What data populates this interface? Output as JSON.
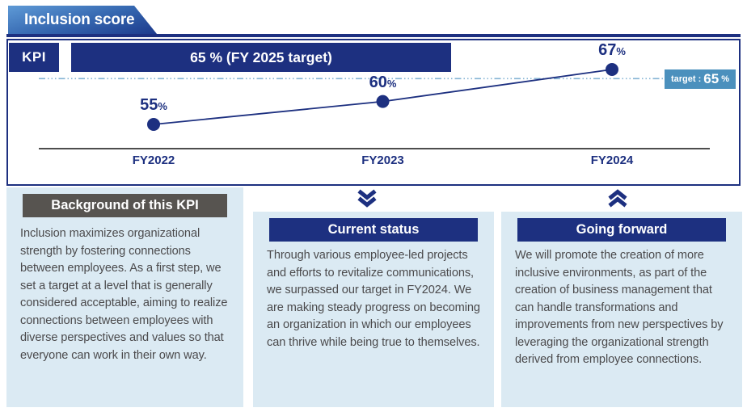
{
  "header": {
    "title": "Inclusion score"
  },
  "kpi": {
    "label": "KPI",
    "target_bar_text": "65 % (FY 2025 target)",
    "badge_prefix": "target :",
    "badge_value": "65",
    "badge_unit": "%"
  },
  "chart_data": {
    "type": "line",
    "title": "Inclusion score KPI trend",
    "categories": [
      "FY2022",
      "FY2023",
      "FY2024"
    ],
    "values": [
      55,
      60,
      67
    ],
    "unit": "%",
    "target": 65,
    "target_annotation": "target : 65%",
    "ylim": [
      50,
      70
    ],
    "grid": false,
    "legend": "none"
  },
  "sections": {
    "background": {
      "title": "Background of this KPI",
      "body": "Inclusion maximizes organizational strength by fostering connections between employees. As a first step, we set a target at a level that is generally considered acceptable, aiming to realize connections between employees with diverse perspectives and values so that everyone can work in their own way."
    },
    "current_status": {
      "title": "Current status",
      "body": "Through various employee-led projects and efforts to revitalize communications, we surpassed our target in FY2024. We are making steady progress on becoming an organization in which our employees can thrive while being true to themselves."
    },
    "going_forward": {
      "title": "Going forward",
      "body": "We will promote the creation of more inclusive environments, as part of the creation of business management that can handle transformations and improvements from new perspectives by leveraging the organizational strength derived from employee connections."
    }
  },
  "colors": {
    "navy": "#1d3080",
    "badge_blue": "#4b90bd",
    "target_line": "#85b4d4",
    "panel_bg": "#dbeaf3",
    "gray_header": "#575450",
    "body_text": "#4b4a4c"
  }
}
